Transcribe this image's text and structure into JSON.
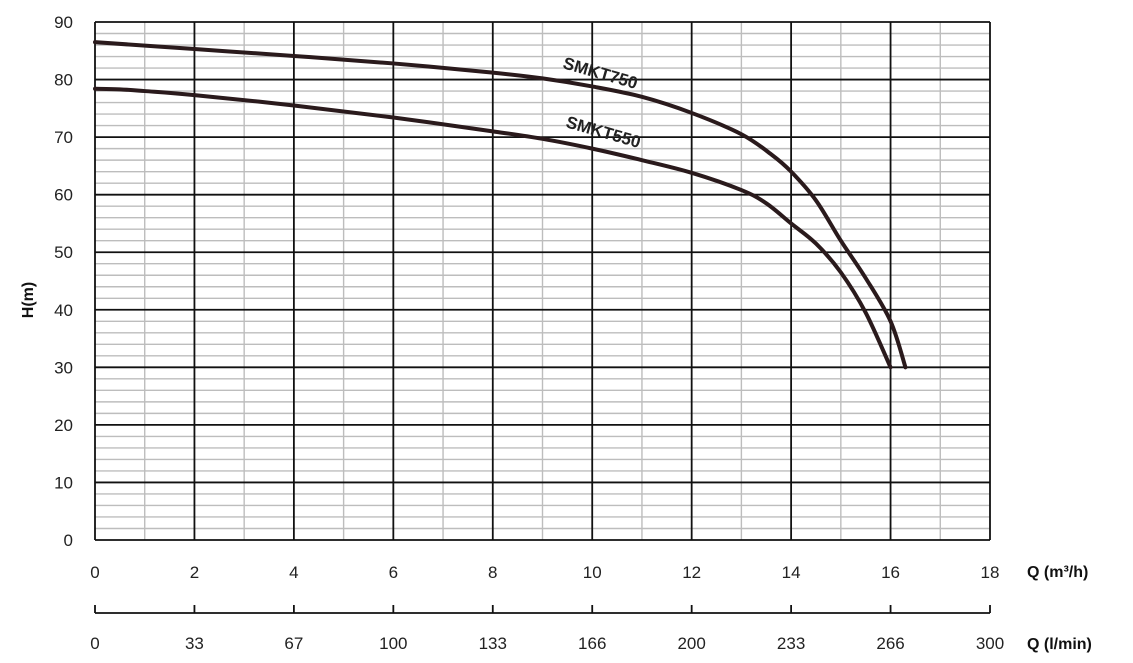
{
  "chart_data": {
    "type": "line",
    "title": "",
    "ylabel": "H(m)",
    "xlabel": "Q (m³/h)",
    "x2label": "Q (l/min)",
    "xlim": [
      0,
      18
    ],
    "ylim": [
      0,
      90
    ],
    "x_ticks": [
      "0",
      "2",
      "4",
      "6",
      "8",
      "10",
      "12",
      "14",
      "16",
      "18"
    ],
    "y_ticks": [
      "0",
      "10",
      "20",
      "30",
      "40",
      "50",
      "60",
      "70",
      "80",
      "90"
    ],
    "x2_ticks": [
      "0",
      "33",
      "67",
      "100",
      "133",
      "166",
      "200",
      "233",
      "266",
      "300"
    ],
    "grid": true,
    "series": [
      {
        "name": "SMKT750",
        "color": "#2a1a1c",
        "x": [
          0,
          2,
          4,
          6,
          8,
          9,
          10,
          11,
          12,
          13,
          13.6,
          14,
          14.5,
          15,
          15.5,
          16,
          16.3
        ],
        "y": [
          86.5,
          85.3,
          84.1,
          82.8,
          81.2,
          80.2,
          78.8,
          77.0,
          74.2,
          70.5,
          67.0,
          64.0,
          59.0,
          52.0,
          45.5,
          38.0,
          30.0
        ]
      },
      {
        "name": "SMKT550",
        "color": "#2a1a1c",
        "x": [
          0,
          0.5,
          1,
          2,
          4,
          6,
          8,
          9,
          10,
          11,
          12,
          13,
          13.5,
          14,
          14.5,
          15,
          15.5,
          16
        ],
        "y": [
          78.4,
          78.3,
          78.0,
          77.3,
          75.5,
          73.4,
          71.0,
          69.7,
          68.0,
          66.0,
          63.8,
          60.8,
          58.5,
          55.0,
          51.5,
          46.5,
          39.5,
          30.0
        ]
      }
    ]
  }
}
